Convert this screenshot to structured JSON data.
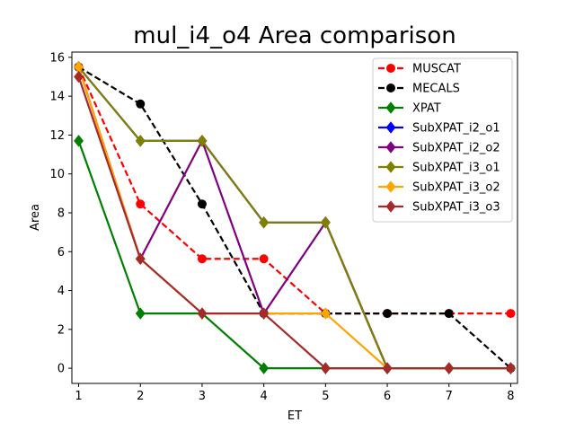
{
  "chart_data": {
    "type": "line",
    "title": "mul_i4_o4 Area comparison",
    "xlabel": "ET",
    "ylabel": "Area",
    "xlim": [
      0.89,
      8.11
    ],
    "ylim": [
      -0.78,
      16.27
    ],
    "xticks": [
      1,
      2,
      3,
      4,
      5,
      6,
      7,
      8
    ],
    "yticks": [
      0,
      2,
      4,
      6,
      8,
      10,
      12,
      14,
      16
    ],
    "grid": false,
    "legend_position": "top-right",
    "series": [
      {
        "name": "MUSCAT",
        "color": "#ff0000",
        "dash": "dashed",
        "marker": "circle",
        "x": [
          1,
          2,
          3,
          4,
          5,
          6,
          7,
          8
        ],
        "y": [
          15.5,
          8.45,
          5.63,
          5.63,
          2.82,
          2.82,
          2.82,
          2.82
        ]
      },
      {
        "name": "MECALS",
        "color": "#000000",
        "dash": "dashed",
        "marker": "circle",
        "x": [
          1,
          2,
          3,
          4,
          5,
          6,
          7,
          8
        ],
        "y": [
          15.5,
          13.6,
          8.45,
          2.82,
          2.82,
          2.82,
          2.82,
          0
        ]
      },
      {
        "name": "XPAT",
        "color": "#008000",
        "dash": "solid",
        "marker": "diamond",
        "x": [
          1,
          2,
          3,
          4,
          5,
          6,
          7,
          8
        ],
        "y": [
          11.7,
          2.82,
          2.82,
          0,
          0,
          0,
          0,
          0
        ]
      },
      {
        "name": "SubXPAT_i2_o1",
        "color": "#0000ff",
        "dash": "solid",
        "marker": "diamond",
        "x": [
          1,
          2,
          3,
          4,
          5,
          6,
          7,
          8
        ],
        "y": [
          15.5,
          11.7,
          11.7,
          7.5,
          7.5,
          0,
          0,
          0
        ]
      },
      {
        "name": "SubXPAT_i2_o2",
        "color": "#800080",
        "dash": "solid",
        "marker": "diamond",
        "x": [
          1,
          2,
          3,
          4,
          5,
          6,
          7,
          8
        ],
        "y": [
          15.5,
          5.63,
          11.7,
          2.82,
          7.5,
          0,
          0,
          0
        ]
      },
      {
        "name": "SubXPAT_i3_o1",
        "color": "#808000",
        "dash": "solid",
        "marker": "diamond",
        "x": [
          1,
          2,
          3,
          4,
          5,
          6,
          7,
          8
        ],
        "y": [
          15.5,
          11.7,
          11.7,
          7.5,
          7.5,
          0,
          0,
          0
        ]
      },
      {
        "name": "SubXPAT_i3_o2",
        "color": "#ffa500",
        "dash": "solid",
        "marker": "diamond",
        "x": [
          1,
          2,
          3,
          4,
          5,
          6,
          7,
          8
        ],
        "y": [
          15.5,
          5.63,
          2.82,
          2.82,
          2.82,
          0,
          0,
          0
        ]
      },
      {
        "name": "SubXPAT_i3_o3",
        "color": "#a52a2a",
        "dash": "solid",
        "marker": "diamond",
        "x": [
          1,
          2,
          3,
          4,
          5,
          6,
          7,
          8
        ],
        "y": [
          15.0,
          5.63,
          2.82,
          2.82,
          0,
          0,
          0,
          0
        ]
      }
    ]
  }
}
